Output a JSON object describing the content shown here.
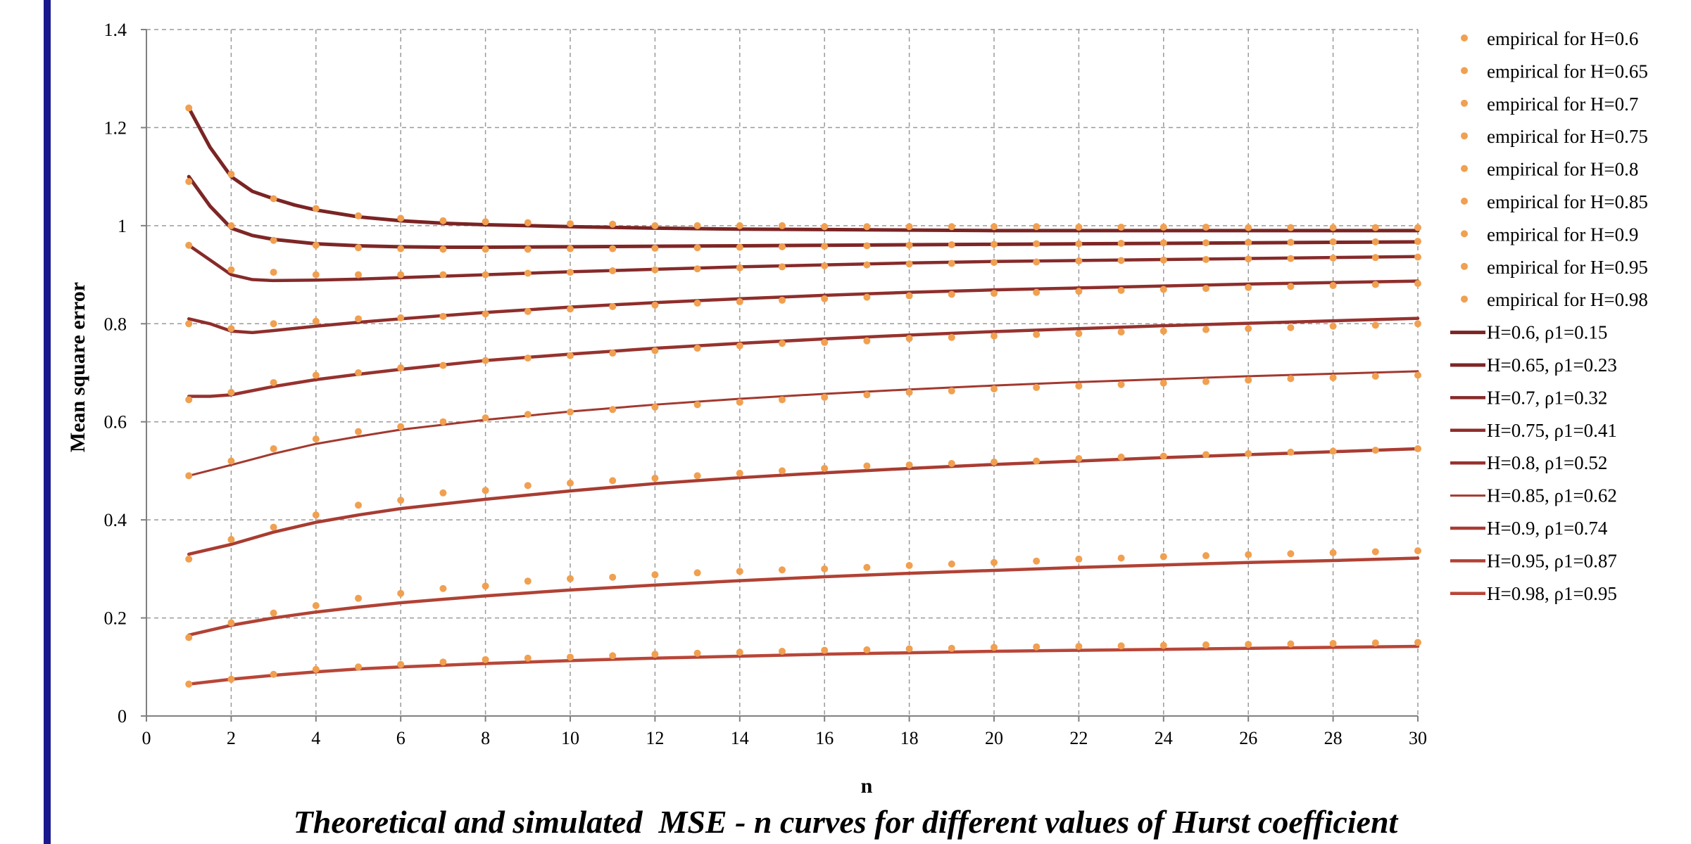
{
  "caption": "Theoretical and simulated  MSE - n curves for different values of Hurst coefficient",
  "chart_data": {
    "type": "line",
    "xlabel": "n",
    "ylabel": "Mean square error",
    "xlim": [
      0,
      30
    ],
    "ylim": [
      0,
      1.4
    ],
    "xticks": [
      0,
      2,
      4,
      6,
      8,
      10,
      12,
      14,
      16,
      18,
      20,
      22,
      24,
      26,
      28,
      30
    ],
    "yticks": [
      0,
      0.2,
      0.4,
      0.6,
      0.8,
      1,
      1.2,
      1.4
    ],
    "xtick_labels": [
      "0",
      "2",
      "4",
      "6",
      "8",
      "10",
      "12",
      "14",
      "16",
      "18",
      "20",
      "22",
      "24",
      "26",
      "28",
      "30"
    ],
    "ytick_labels": [
      "0",
      "0.2",
      "0.4",
      "0.6",
      "0.8",
      "1",
      "1.2",
      "1.4"
    ],
    "grid": true,
    "legend_position": "right",
    "colors": {
      "empirical": "#f0a050",
      "theory": "#8b2e2e",
      "theory_alt": "#b5453a"
    },
    "empirical_series": [
      {
        "name": "empirical for H=0.6",
        "x": [
          1,
          2,
          3,
          4,
          5,
          6,
          7,
          8,
          9,
          10,
          11,
          12,
          13,
          14,
          15,
          16,
          17,
          18,
          19,
          20,
          21,
          22,
          23,
          24,
          25,
          26,
          27,
          28,
          29,
          30
        ],
        "y": [
          1.24,
          1.105,
          1.055,
          1.035,
          1.02,
          1.015,
          1.01,
          1.008,
          1.006,
          1.004,
          1.003,
          1.0,
          1.0,
          1.0,
          1.0,
          0.998,
          0.998,
          0.998,
          0.998,
          0.998,
          0.998,
          0.997,
          0.997,
          0.997,
          0.997,
          0.996,
          0.996,
          0.996,
          0.996,
          0.996
        ]
      },
      {
        "name": "empirical for H=0.65",
        "x": [
          1,
          2,
          3,
          4,
          5,
          6,
          7,
          8,
          9,
          10,
          11,
          12,
          13,
          14,
          15,
          16,
          17,
          18,
          19,
          20,
          21,
          22,
          23,
          24,
          25,
          26,
          27,
          28,
          29,
          30
        ],
        "y": [
          1.09,
          1.0,
          0.97,
          0.96,
          0.955,
          0.953,
          0.952,
          0.952,
          0.952,
          0.953,
          0.953,
          0.954,
          0.955,
          0.956,
          0.957,
          0.958,
          0.959,
          0.96,
          0.961,
          0.962,
          0.963,
          0.963,
          0.964,
          0.965,
          0.965,
          0.966,
          0.966,
          0.967,
          0.967,
          0.968
        ]
      },
      {
        "name": "empirical for H=0.7",
        "x": [
          1,
          2,
          3,
          4,
          5,
          6,
          7,
          8,
          9,
          10,
          11,
          12,
          13,
          14,
          15,
          16,
          17,
          18,
          19,
          20,
          21,
          22,
          23,
          24,
          25,
          26,
          27,
          28,
          29,
          30
        ],
        "y": [
          0.96,
          0.91,
          0.905,
          0.9,
          0.9,
          0.9,
          0.9,
          0.9,
          0.903,
          0.905,
          0.908,
          0.91,
          0.912,
          0.914,
          0.916,
          0.918,
          0.92,
          0.922,
          0.923,
          0.925,
          0.926,
          0.928,
          0.929,
          0.93,
          0.931,
          0.932,
          0.933,
          0.934,
          0.935,
          0.936
        ]
      },
      {
        "name": "empirical for H=0.75",
        "x": [
          1,
          2,
          3,
          4,
          5,
          6,
          7,
          8,
          9,
          10,
          11,
          12,
          13,
          14,
          15,
          16,
          17,
          18,
          19,
          20,
          21,
          22,
          23,
          24,
          25,
          26,
          27,
          28,
          29,
          30
        ],
        "y": [
          0.8,
          0.79,
          0.8,
          0.805,
          0.81,
          0.812,
          0.815,
          0.82,
          0.825,
          0.83,
          0.835,
          0.838,
          0.842,
          0.845,
          0.848,
          0.851,
          0.854,
          0.857,
          0.86,
          0.862,
          0.864,
          0.866,
          0.868,
          0.87,
          0.872,
          0.874,
          0.876,
          0.878,
          0.88,
          0.882
        ]
      },
      {
        "name": "empirical for H=0.8",
        "x": [
          1,
          2,
          3,
          4,
          5,
          6,
          7,
          8,
          9,
          10,
          11,
          12,
          13,
          14,
          15,
          16,
          17,
          18,
          19,
          20,
          21,
          22,
          23,
          24,
          25,
          26,
          27,
          28,
          29,
          30
        ],
        "y": [
          0.645,
          0.66,
          0.68,
          0.695,
          0.7,
          0.71,
          0.715,
          0.725,
          0.73,
          0.735,
          0.74,
          0.745,
          0.75,
          0.755,
          0.76,
          0.762,
          0.765,
          0.77,
          0.772,
          0.775,
          0.778,
          0.78,
          0.783,
          0.785,
          0.788,
          0.79,
          0.792,
          0.795,
          0.797,
          0.8
        ]
      },
      {
        "name": "empirical for H=0.85",
        "x": [
          1,
          2,
          3,
          4,
          5,
          6,
          7,
          8,
          9,
          10,
          11,
          12,
          13,
          14,
          15,
          16,
          17,
          18,
          19,
          20,
          21,
          22,
          23,
          24,
          25,
          26,
          27,
          28,
          29,
          30
        ],
        "y": [
          0.49,
          0.52,
          0.545,
          0.565,
          0.58,
          0.59,
          0.6,
          0.608,
          0.615,
          0.62,
          0.625,
          0.63,
          0.635,
          0.64,
          0.645,
          0.65,
          0.655,
          0.66,
          0.663,
          0.667,
          0.67,
          0.673,
          0.676,
          0.679,
          0.682,
          0.685,
          0.688,
          0.69,
          0.693,
          0.695
        ]
      },
      {
        "name": "empirical for H=0.9",
        "x": [
          1,
          2,
          3,
          4,
          5,
          6,
          7,
          8,
          9,
          10,
          11,
          12,
          13,
          14,
          15,
          16,
          17,
          18,
          19,
          20,
          21,
          22,
          23,
          24,
          25,
          26,
          27,
          28,
          29,
          30
        ],
        "y": [
          0.32,
          0.36,
          0.385,
          0.41,
          0.43,
          0.44,
          0.455,
          0.46,
          0.47,
          0.475,
          0.48,
          0.485,
          0.49,
          0.495,
          0.5,
          0.505,
          0.51,
          0.512,
          0.515,
          0.518,
          0.52,
          0.525,
          0.528,
          0.53,
          0.533,
          0.535,
          0.538,
          0.54,
          0.542,
          0.545
        ]
      },
      {
        "name": "empirical for H=0.95",
        "x": [
          1,
          2,
          3,
          4,
          5,
          6,
          7,
          8,
          9,
          10,
          11,
          12,
          13,
          14,
          15,
          16,
          17,
          18,
          19,
          20,
          21,
          22,
          23,
          24,
          25,
          26,
          27,
          28,
          29,
          30
        ],
        "y": [
          0.16,
          0.19,
          0.21,
          0.225,
          0.24,
          0.25,
          0.26,
          0.265,
          0.275,
          0.28,
          0.283,
          0.288,
          0.292,
          0.295,
          0.298,
          0.3,
          0.303,
          0.307,
          0.31,
          0.313,
          0.316,
          0.32,
          0.322,
          0.325,
          0.327,
          0.329,
          0.331,
          0.333,
          0.335,
          0.337
        ]
      },
      {
        "name": "empirical for H=0.98",
        "x": [
          1,
          2,
          3,
          4,
          5,
          6,
          7,
          8,
          9,
          10,
          11,
          12,
          13,
          14,
          15,
          16,
          17,
          18,
          19,
          20,
          21,
          22,
          23,
          24,
          25,
          26,
          27,
          28,
          29,
          30
        ],
        "y": [
          0.065,
          0.075,
          0.085,
          0.095,
          0.1,
          0.105,
          0.11,
          0.115,
          0.118,
          0.12,
          0.123,
          0.126,
          0.128,
          0.13,
          0.132,
          0.134,
          0.135,
          0.137,
          0.138,
          0.14,
          0.141,
          0.142,
          0.143,
          0.144,
          0.145,
          0.146,
          0.147,
          0.148,
          0.149,
          0.15
        ]
      }
    ],
    "theory_series": [
      {
        "name": "H=0.6, ρ1=0.15",
        "x": [
          1,
          1.5,
          2,
          2.5,
          3,
          3.5,
          4,
          5,
          6,
          7,
          8,
          10,
          12,
          14,
          16,
          18,
          20,
          22,
          24,
          26,
          28,
          30
        ],
        "y": [
          1.24,
          1.16,
          1.1,
          1.07,
          1.055,
          1.042,
          1.032,
          1.018,
          1.01,
          1.005,
          1.002,
          0.998,
          0.995,
          0.993,
          0.992,
          0.991,
          0.99,
          0.99,
          0.99,
          0.99,
          0.99,
          0.99
        ]
      },
      {
        "name": "H=0.65, ρ1=0.23",
        "x": [
          1,
          1.5,
          2,
          2.5,
          3,
          4,
          5,
          6,
          7,
          8,
          10,
          12,
          14,
          16,
          18,
          20,
          22,
          24,
          26,
          28,
          30
        ],
        "y": [
          1.1,
          1.04,
          0.995,
          0.98,
          0.972,
          0.963,
          0.959,
          0.957,
          0.956,
          0.956,
          0.957,
          0.958,
          0.959,
          0.96,
          0.961,
          0.962,
          0.963,
          0.964,
          0.965,
          0.966,
          0.967
        ]
      },
      {
        "name": "H=0.7, ρ1=0.32",
        "x": [
          1,
          1.5,
          2,
          2.5,
          3,
          4,
          5,
          6,
          8,
          10,
          12,
          14,
          16,
          18,
          20,
          22,
          24,
          26,
          28,
          30
        ],
        "y": [
          0.96,
          0.93,
          0.9,
          0.89,
          0.888,
          0.889,
          0.891,
          0.894,
          0.9,
          0.906,
          0.911,
          0.916,
          0.92,
          0.924,
          0.927,
          0.929,
          0.931,
          0.933,
          0.935,
          0.937
        ]
      },
      {
        "name": "H=0.75, ρ1=0.41",
        "x": [
          1,
          1.5,
          2,
          2.5,
          3,
          4,
          5,
          6,
          8,
          10,
          12,
          14,
          16,
          18,
          20,
          22,
          24,
          26,
          28,
          30
        ],
        "y": [
          0.81,
          0.8,
          0.785,
          0.782,
          0.786,
          0.795,
          0.803,
          0.81,
          0.823,
          0.834,
          0.843,
          0.851,
          0.858,
          0.864,
          0.869,
          0.873,
          0.877,
          0.881,
          0.884,
          0.887
        ]
      },
      {
        "name": "H=0.8, ρ1=0.52",
        "x": [
          1,
          1.5,
          2,
          3,
          4,
          5,
          6,
          8,
          10,
          12,
          14,
          16,
          18,
          20,
          22,
          24,
          26,
          28,
          30
        ],
        "y": [
          0.652,
          0.652,
          0.655,
          0.672,
          0.686,
          0.697,
          0.707,
          0.725,
          0.738,
          0.75,
          0.76,
          0.769,
          0.777,
          0.784,
          0.79,
          0.796,
          0.801,
          0.806,
          0.811
        ]
      },
      {
        "name": "H=0.85, ρ1=0.62",
        "x": [
          1,
          2,
          3,
          4,
          5,
          6,
          8,
          10,
          12,
          14,
          16,
          18,
          20,
          22,
          24,
          26,
          28,
          30
        ],
        "y": [
          0.49,
          0.512,
          0.535,
          0.555,
          0.57,
          0.584,
          0.604,
          0.621,
          0.635,
          0.647,
          0.657,
          0.666,
          0.674,
          0.681,
          0.687,
          0.693,
          0.698,
          0.703
        ]
      },
      {
        "name": "H=0.9, ρ1=0.74",
        "x": [
          1,
          2,
          3,
          4,
          5,
          6,
          8,
          10,
          12,
          14,
          16,
          18,
          20,
          22,
          24,
          26,
          28,
          30
        ],
        "y": [
          0.33,
          0.35,
          0.375,
          0.395,
          0.41,
          0.423,
          0.442,
          0.459,
          0.474,
          0.486,
          0.496,
          0.505,
          0.513,
          0.52,
          0.527,
          0.533,
          0.539,
          0.545
        ]
      },
      {
        "name": "H=0.95, ρ1=0.87",
        "x": [
          1,
          2,
          3,
          4,
          5,
          6,
          8,
          10,
          12,
          14,
          16,
          18,
          20,
          22,
          24,
          26,
          28,
          30
        ],
        "y": [
          0.165,
          0.185,
          0.2,
          0.212,
          0.222,
          0.231,
          0.245,
          0.257,
          0.267,
          0.276,
          0.284,
          0.291,
          0.297,
          0.303,
          0.308,
          0.313,
          0.317,
          0.322
        ]
      },
      {
        "name": "H=0.98, ρ1=0.95",
        "x": [
          1,
          2,
          3,
          4,
          5,
          6,
          8,
          10,
          12,
          14,
          16,
          18,
          20,
          22,
          24,
          26,
          28,
          30
        ],
        "y": [
          0.065,
          0.075,
          0.083,
          0.09,
          0.096,
          0.1,
          0.107,
          0.113,
          0.118,
          0.122,
          0.126,
          0.129,
          0.132,
          0.134,
          0.136,
          0.138,
          0.14,
          0.142
        ]
      }
    ]
  }
}
